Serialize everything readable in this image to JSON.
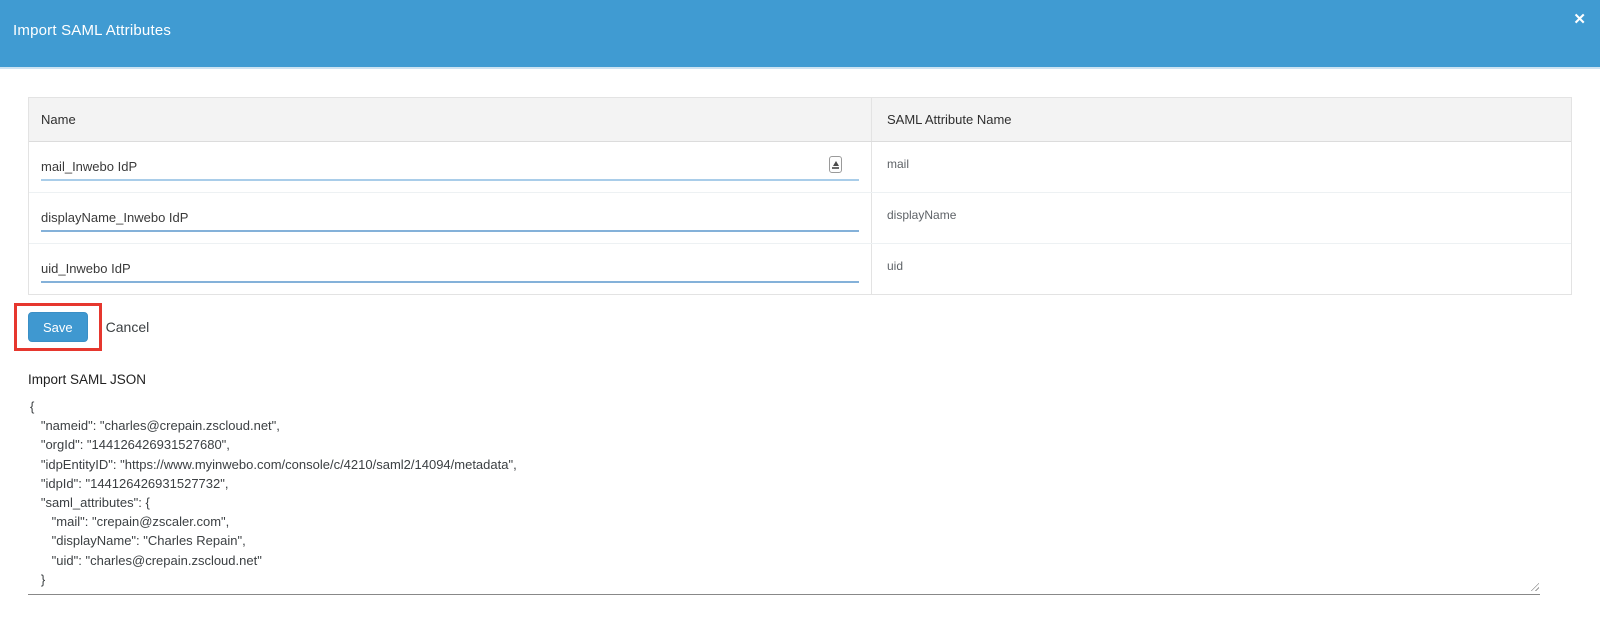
{
  "header": {
    "title": "Import SAML Attributes",
    "close_icon": "✕"
  },
  "table": {
    "columns": {
      "name": "Name",
      "saml_attribute_name": "SAML Attribute Name"
    },
    "rows": [
      {
        "name_value": "mail_Inwebo IdP",
        "saml_attribute": "mail"
      },
      {
        "name_value": "displayName_Inwebo IdP",
        "saml_attribute": "displayName"
      },
      {
        "name_value": "uid_Inwebo IdP",
        "saml_attribute": "uid"
      }
    ]
  },
  "actions": {
    "save_label": "Save",
    "cancel_label": "Cancel"
  },
  "json_section": {
    "label": "Import SAML JSON",
    "content": "{\n   \"nameid\": \"charles@crepain.zscloud.net\",\n   \"orgId\": \"144126426931527680\",\n   \"idpEntityID\": \"https://www.myinwebo.com/console/c/4210/saml2/14094/metadata\",\n   \"idpId\": \"144126426931527732\",\n   \"saml_attributes\": {\n      \"mail\": \"crepain@zscaler.com\",\n      \"displayName\": \"Charles Repain\",\n      \"uid\": \"charles@crepain.zscloud.net\"\n   }"
  },
  "colors": {
    "header_blue": "#409bd2",
    "save_blue": "#3f98d0",
    "annotation_red": "#e6372e"
  }
}
